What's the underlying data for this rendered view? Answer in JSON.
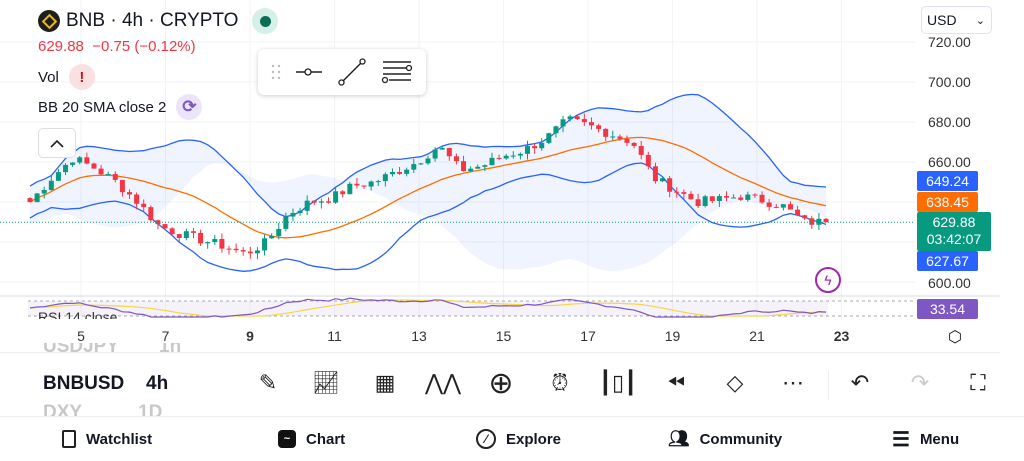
{
  "header": {
    "symbol": "BNB",
    "interval": "4h",
    "exchange": "CRYPTO",
    "title": "BNB · 4h · CRYPTO",
    "last": "629.88",
    "change": "−0.75 (−0.12%)"
  },
  "indicators": {
    "vol": "Vol",
    "vol_badge": "!",
    "bb": "BB 20 SMA close 2",
    "rsi": "RSI 14 close"
  },
  "currency": "USD",
  "price_axis": [
    "720.00",
    "700.00",
    "680.00",
    "660.00",
    "600.00"
  ],
  "price_tags": {
    "bb_upper": "649.24",
    "bb_basis": "638.45",
    "last": "629.88",
    "countdown": "03:42:07",
    "bb_lower": "627.67",
    "rsi": "33.54"
  },
  "time_axis": [
    "5",
    "7",
    "9",
    "11",
    "13",
    "15",
    "17",
    "19",
    "21",
    "23"
  ],
  "watchlist_symbols": [
    {
      "symbol": "USDJPY",
      "interval": "1h"
    },
    {
      "symbol": "BNBUSD",
      "interval": "4h"
    },
    {
      "symbol": "DXY",
      "interval": "1D"
    }
  ],
  "toolbar": [
    "draw",
    "indicators",
    "layouts",
    "patterns",
    "add",
    "alert",
    "chart-type",
    "replay",
    "layers",
    "more",
    "undo",
    "redo",
    "fullscreen"
  ],
  "nav": {
    "watchlist": "Watchlist",
    "chart": "Chart",
    "explore": "Explore",
    "community": "Community",
    "menu": "Menu"
  },
  "colors": {
    "up": "#089981",
    "down": "#f23645",
    "bb": "#2962ff",
    "basis": "#ff6d00",
    "rsi": "#7e57c2"
  },
  "price_series_keypoints": [
    640,
    652,
    662,
    657,
    650,
    640,
    628,
    624,
    621,
    618,
    614,
    620,
    634,
    640,
    642,
    648,
    650,
    655,
    660,
    668,
    656,
    658,
    663,
    666,
    672,
    681,
    678,
    674,
    670,
    652,
    646,
    640,
    641,
    643,
    641,
    638,
    630,
    629.88
  ]
}
